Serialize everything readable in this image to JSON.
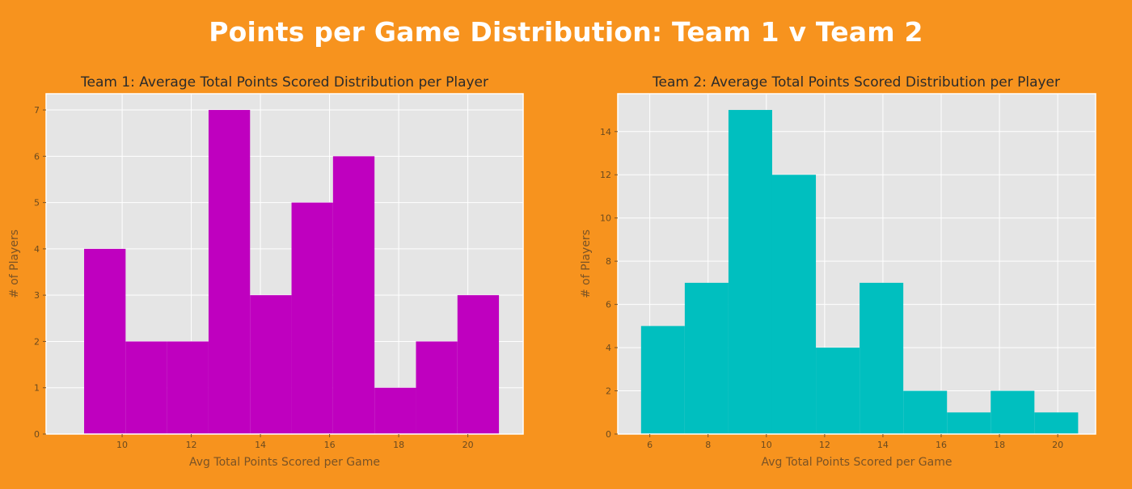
{
  "page_title": "Points per Game Distribution: Team 1 v Team 2",
  "colors": {
    "background": "#f7931e",
    "plot_bg": "#e5e5e5",
    "grid": "#ffffff"
  },
  "chart_data": [
    {
      "type": "bar",
      "title": "Team 1: Average Total Points Scored Distribution per Player",
      "xlabel": "Avg Total Points Scored per Game",
      "ylabel": "# of Players",
      "color": "#bf00bf",
      "bin_edges": [
        8.9,
        10.1,
        11.3,
        12.5,
        13.7,
        14.9,
        16.1,
        17.3,
        18.5,
        19.7,
        20.9
      ],
      "values": [
        4,
        2,
        2,
        7,
        3,
        5,
        6,
        1,
        2,
        3
      ],
      "xlim": [
        7.8,
        21.6
      ],
      "ylim": [
        0,
        7.35
      ],
      "xticks": [
        10,
        12,
        14,
        16,
        18,
        20
      ],
      "yticks": [
        0,
        1,
        2,
        3,
        4,
        5,
        6,
        7
      ],
      "grid": true
    },
    {
      "type": "bar",
      "title": "Team 2: Average Total Points Scored Distribution per Player",
      "xlabel": "Avg Total Points Scored per Game",
      "ylabel": "# of Players",
      "color": "#00bfbf",
      "bin_edges": [
        5.7,
        7.2,
        8.7,
        10.2,
        11.7,
        13.2,
        14.7,
        16.2,
        17.7,
        19.2,
        20.7
      ],
      "values": [
        5,
        7,
        15,
        12,
        4,
        7,
        2,
        1,
        2,
        1
      ],
      "xlim": [
        4.9,
        21.3
      ],
      "ylim": [
        0,
        15.75
      ],
      "xticks": [
        6,
        8,
        10,
        12,
        14,
        16,
        18,
        20
      ],
      "yticks": [
        0,
        2,
        4,
        6,
        8,
        10,
        12,
        14
      ],
      "grid": true
    }
  ]
}
